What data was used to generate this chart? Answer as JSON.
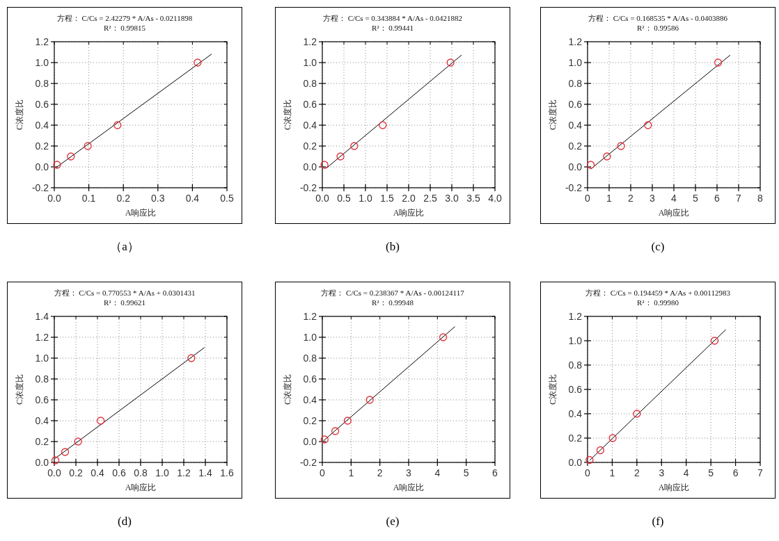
{
  "chart_data": [
    {
      "type": "scatter",
      "title": "方程： C/Cs = 2.42279 * A/As - 0.0211898",
      "subtitle": "R²： 0.99815",
      "xlabel": "A响应比",
      "ylabel": "C浓度比",
      "annotations": [
        "（a）"
      ],
      "xlim": [
        0,
        0.5
      ],
      "ylim": [
        -0.2,
        1.2
      ],
      "grid": true,
      "xticks": [
        {
          "value": 0,
          "label": "0.0"
        },
        {
          "value": 0.1,
          "label": "0.1"
        },
        {
          "value": 0.2,
          "label": "0.2"
        },
        {
          "value": 0.3,
          "label": "0.3"
        },
        {
          "value": 0.4,
          "label": "0.4"
        },
        {
          "value": 0.5,
          "label": "0.5"
        }
      ],
      "yticks": [
        {
          "value": -0.2,
          "label": "-0.2"
        },
        {
          "value": 0,
          "label": "0.0"
        },
        {
          "value": 0.2,
          "label": "0.2"
        },
        {
          "value": 0.4,
          "label": "0.4"
        },
        {
          "value": 0.6,
          "label": "0.6"
        },
        {
          "value": 0.8,
          "label": "0.8"
        },
        {
          "value": 1,
          "label": "1.0"
        },
        {
          "value": 1.2,
          "label": "1.2"
        }
      ],
      "series": [
        {
          "type": "scatter",
          "marker": "circle",
          "color": "#e0303a",
          "x": [
            0.008,
            0.048,
            0.097,
            0.183,
            0.415
          ],
          "values": [
            0.02,
            0.1,
            0.2,
            0.4,
            1.0
          ]
        },
        {
          "type": "line",
          "marker": "none",
          "color": "#000000",
          "x": [
            0.008,
            0.455
          ],
          "values": [
            0.0,
            1.08
          ]
        }
      ]
    },
    {
      "type": "scatter",
      "title": "方程： C/Cs = 0.343884 * A/As - 0.0421882",
      "subtitle": "R²： 0.99441",
      "xlabel": "A响应比",
      "ylabel": "C浓度比",
      "annotations": [
        "(b)"
      ],
      "xlim": [
        0,
        4
      ],
      "ylim": [
        -0.2,
        1.2
      ],
      "grid": true,
      "xticks": [
        {
          "value": 0,
          "label": "0.0"
        },
        {
          "value": 0.5,
          "label": "0.5"
        },
        {
          "value": 1,
          "label": "1.0"
        },
        {
          "value": 1.5,
          "label": "1.5"
        },
        {
          "value": 2,
          "label": "2.0"
        },
        {
          "value": 2.5,
          "label": "2.5"
        },
        {
          "value": 3,
          "label": "3.0"
        },
        {
          "value": 3.5,
          "label": "3.5"
        },
        {
          "value": 4,
          "label": "4.0"
        }
      ],
      "yticks": [
        {
          "value": -0.2,
          "label": "-0.2"
        },
        {
          "value": 0,
          "label": "0.0"
        },
        {
          "value": 0.2,
          "label": "0.2"
        },
        {
          "value": 0.4,
          "label": "0.4"
        },
        {
          "value": 0.6,
          "label": "0.6"
        },
        {
          "value": 0.8,
          "label": "0.8"
        },
        {
          "value": 1,
          "label": "1.0"
        },
        {
          "value": 1.2,
          "label": "1.2"
        }
      ],
      "series": [
        {
          "type": "scatter",
          "marker": "circle",
          "color": "#e0303a",
          "x": [
            0.05,
            0.42,
            0.74,
            1.4,
            2.97
          ],
          "values": [
            0.02,
            0.1,
            0.2,
            0.4,
            1.0
          ]
        },
        {
          "type": "line",
          "marker": "none",
          "color": "#000000",
          "x": [
            0.1,
            3.22
          ],
          "values": [
            -0.01,
            1.07
          ]
        }
      ]
    },
    {
      "type": "scatter",
      "title": "方程： C/Cs = 0.168535 * A/As - 0.0403886",
      "subtitle": "R²： 0.99586",
      "xlabel": "A响应比",
      "ylabel": "C浓度比",
      "annotations": [
        "(c)"
      ],
      "xlim": [
        0,
        8
      ],
      "ylim": [
        -0.2,
        1.2
      ],
      "grid": true,
      "xticks": [
        0,
        1,
        2,
        3,
        4,
        5,
        6,
        7,
        8
      ],
      "yticks": [
        {
          "value": -0.2,
          "label": "-0.2"
        },
        {
          "value": 0,
          "label": "0.0"
        },
        {
          "value": 0.2,
          "label": "0.2"
        },
        {
          "value": 0.4,
          "label": "0.4"
        },
        {
          "value": 0.6,
          "label": "0.6"
        },
        {
          "value": 0.8,
          "label": "0.8"
        },
        {
          "value": 1,
          "label": "1.0"
        },
        {
          "value": 1.2,
          "label": "1.2"
        }
      ],
      "series": [
        {
          "type": "scatter",
          "marker": "circle",
          "color": "#e0303a",
          "x": [
            0.15,
            0.9,
            1.55,
            2.8,
            6.05
          ],
          "values": [
            0.02,
            0.1,
            0.2,
            0.4,
            1.0
          ]
        },
        {
          "type": "line",
          "marker": "none",
          "color": "#000000",
          "x": [
            0.15,
            6.6
          ],
          "values": [
            -0.02,
            1.07
          ]
        }
      ]
    },
    {
      "type": "scatter",
      "title": "方程： C/Cs = 0.770553 * A/As + 0.0301431",
      "subtitle": "R²： 0.99621",
      "xlabel": "A响应比",
      "ylabel": "C浓度比",
      "annotations": [
        "(d)"
      ],
      "xlim": [
        0,
        1.6
      ],
      "ylim": [
        0,
        1.4
      ],
      "grid": true,
      "xticks": [
        {
          "value": 0,
          "label": "0.0"
        },
        {
          "value": 0.2,
          "label": "0.2"
        },
        {
          "value": 0.4,
          "label": "0.4"
        },
        {
          "value": 0.6,
          "label": "0.6"
        },
        {
          "value": 0.8,
          "label": "0.8"
        },
        {
          "value": 1,
          "label": "1.0"
        },
        {
          "value": 1.2,
          "label": "1.2"
        },
        {
          "value": 1.4,
          "label": "1.4"
        },
        {
          "value": 1.6,
          "label": "1.6"
        }
      ],
      "yticks": [
        {
          "value": 0,
          "label": "0.0"
        },
        {
          "value": 0.2,
          "label": "0.2"
        },
        {
          "value": 0.4,
          "label": "0.4"
        },
        {
          "value": 0.6,
          "label": "0.6"
        },
        {
          "value": 0.8,
          "label": "0.8"
        },
        {
          "value": 1,
          "label": "1.0"
        },
        {
          "value": 1.2,
          "label": "1.2"
        },
        {
          "value": 1.4,
          "label": "1.4"
        }
      ],
      "series": [
        {
          "type": "scatter",
          "marker": "circle",
          "color": "#e0303a",
          "x": [
            0.01,
            0.1,
            0.22,
            0.43,
            1.27
          ],
          "values": [
            0.02,
            0.1,
            0.2,
            0.4,
            1.0
          ]
        },
        {
          "type": "line",
          "marker": "none",
          "color": "#000000",
          "x": [
            0.01,
            1.39
          ],
          "values": [
            0.04,
            1.1
          ]
        }
      ]
    },
    {
      "type": "scatter",
      "title": "方程： C/Cs = 0.238367 * A/As - 0.00124117",
      "subtitle": "R²： 0.99948",
      "xlabel": "A响应比",
      "ylabel": "C浓度比",
      "annotations": [
        "(e)"
      ],
      "xlim": [
        0,
        6
      ],
      "ylim": [
        -0.2,
        1.2
      ],
      "grid": true,
      "xticks": [
        0,
        1,
        2,
        3,
        4,
        5,
        6
      ],
      "yticks": [
        {
          "value": -0.2,
          "label": "-0.2"
        },
        {
          "value": 0,
          "label": "0.0"
        },
        {
          "value": 0.2,
          "label": "0.2"
        },
        {
          "value": 0.4,
          "label": "0.4"
        },
        {
          "value": 0.6,
          "label": "0.6"
        },
        {
          "value": 0.8,
          "label": "0.8"
        },
        {
          "value": 1,
          "label": "1.0"
        },
        {
          "value": 1.2,
          "label": "1.2"
        }
      ],
      "series": [
        {
          "type": "scatter",
          "marker": "circle",
          "color": "#e0303a",
          "x": [
            0.08,
            0.45,
            0.88,
            1.65,
            4.2
          ],
          "values": [
            0.02,
            0.1,
            0.2,
            0.4,
            1.0
          ]
        },
        {
          "type": "line",
          "marker": "none",
          "color": "#000000",
          "x": [
            0.05,
            4.6
          ],
          "values": [
            0.01,
            1.1
          ]
        }
      ]
    },
    {
      "type": "scatter",
      "title": "方程： C/Cs = 0.194459 * A/As + 0.00112983",
      "subtitle": "R²： 0.99980",
      "xlabel": "A响应比",
      "ylabel": "C浓度比",
      "annotations": [
        "(f)"
      ],
      "xlim": [
        0,
        7
      ],
      "ylim": [
        0,
        1.2
      ],
      "grid": true,
      "xticks": [
        0,
        1,
        2,
        3,
        4,
        5,
        6,
        7
      ],
      "yticks": [
        {
          "value": 0,
          "label": "0.0"
        },
        {
          "value": 0.2,
          "label": "0.2"
        },
        {
          "value": 0.4,
          "label": "0.4"
        },
        {
          "value": 0.6,
          "label": "0.6"
        },
        {
          "value": 0.8,
          "label": "0.8"
        },
        {
          "value": 1,
          "label": "1.0"
        },
        {
          "value": 1.2,
          "label": "1.2"
        }
      ],
      "series": [
        {
          "type": "scatter",
          "marker": "circle",
          "color": "#e0303a",
          "x": [
            0.08,
            0.52,
            1.02,
            2.0,
            5.15
          ],
          "values": [
            0.02,
            0.1,
            0.2,
            0.4,
            1.0
          ]
        },
        {
          "type": "line",
          "marker": "none",
          "color": "#000000",
          "x": [
            0.1,
            5.6
          ],
          "values": [
            0.02,
            1.09
          ]
        }
      ]
    }
  ]
}
